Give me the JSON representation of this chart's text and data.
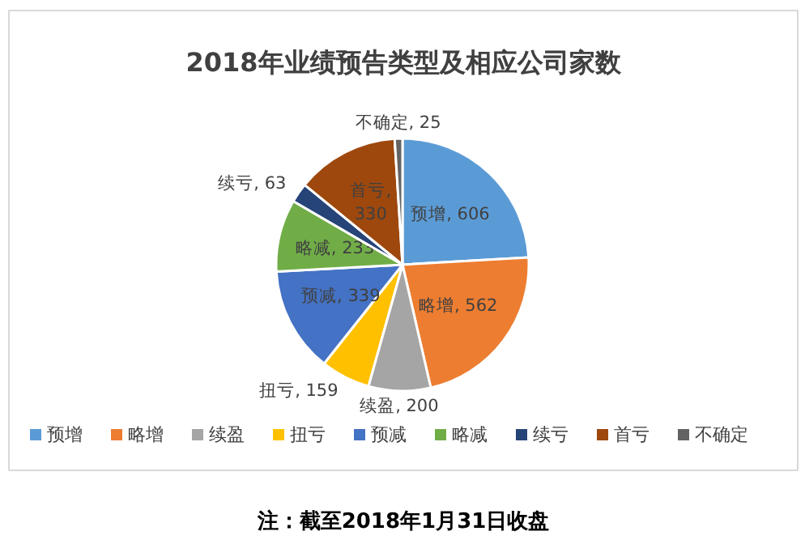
{
  "chart_data": {
    "type": "pie",
    "title": "2018年业绩预告类型及相应公司家数",
    "categories": [
      "预增",
      "略增",
      "续盈",
      "扭亏",
      "预减",
      "略减",
      "续亏",
      "首亏",
      "不确定"
    ],
    "values": [
      606,
      562,
      200,
      159,
      339,
      233,
      63,
      330,
      25
    ],
    "colors": [
      "#5b9bd5",
      "#ed7d31",
      "#a5a5a5",
      "#ffc000",
      "#4472c4",
      "#70ad47",
      "#264478",
      "#9e480e",
      "#636363"
    ],
    "value_labels": [
      "预增, 606",
      "略增, 562",
      "续盈, 200",
      "扭亏, 159",
      "预减, 339",
      "略减, 233",
      "续亏, 63",
      "首亏, 330",
      "不确定, 25"
    ],
    "legend": "bottom",
    "annotations": [
      "注：截至2018年1月31日收盘"
    ]
  }
}
